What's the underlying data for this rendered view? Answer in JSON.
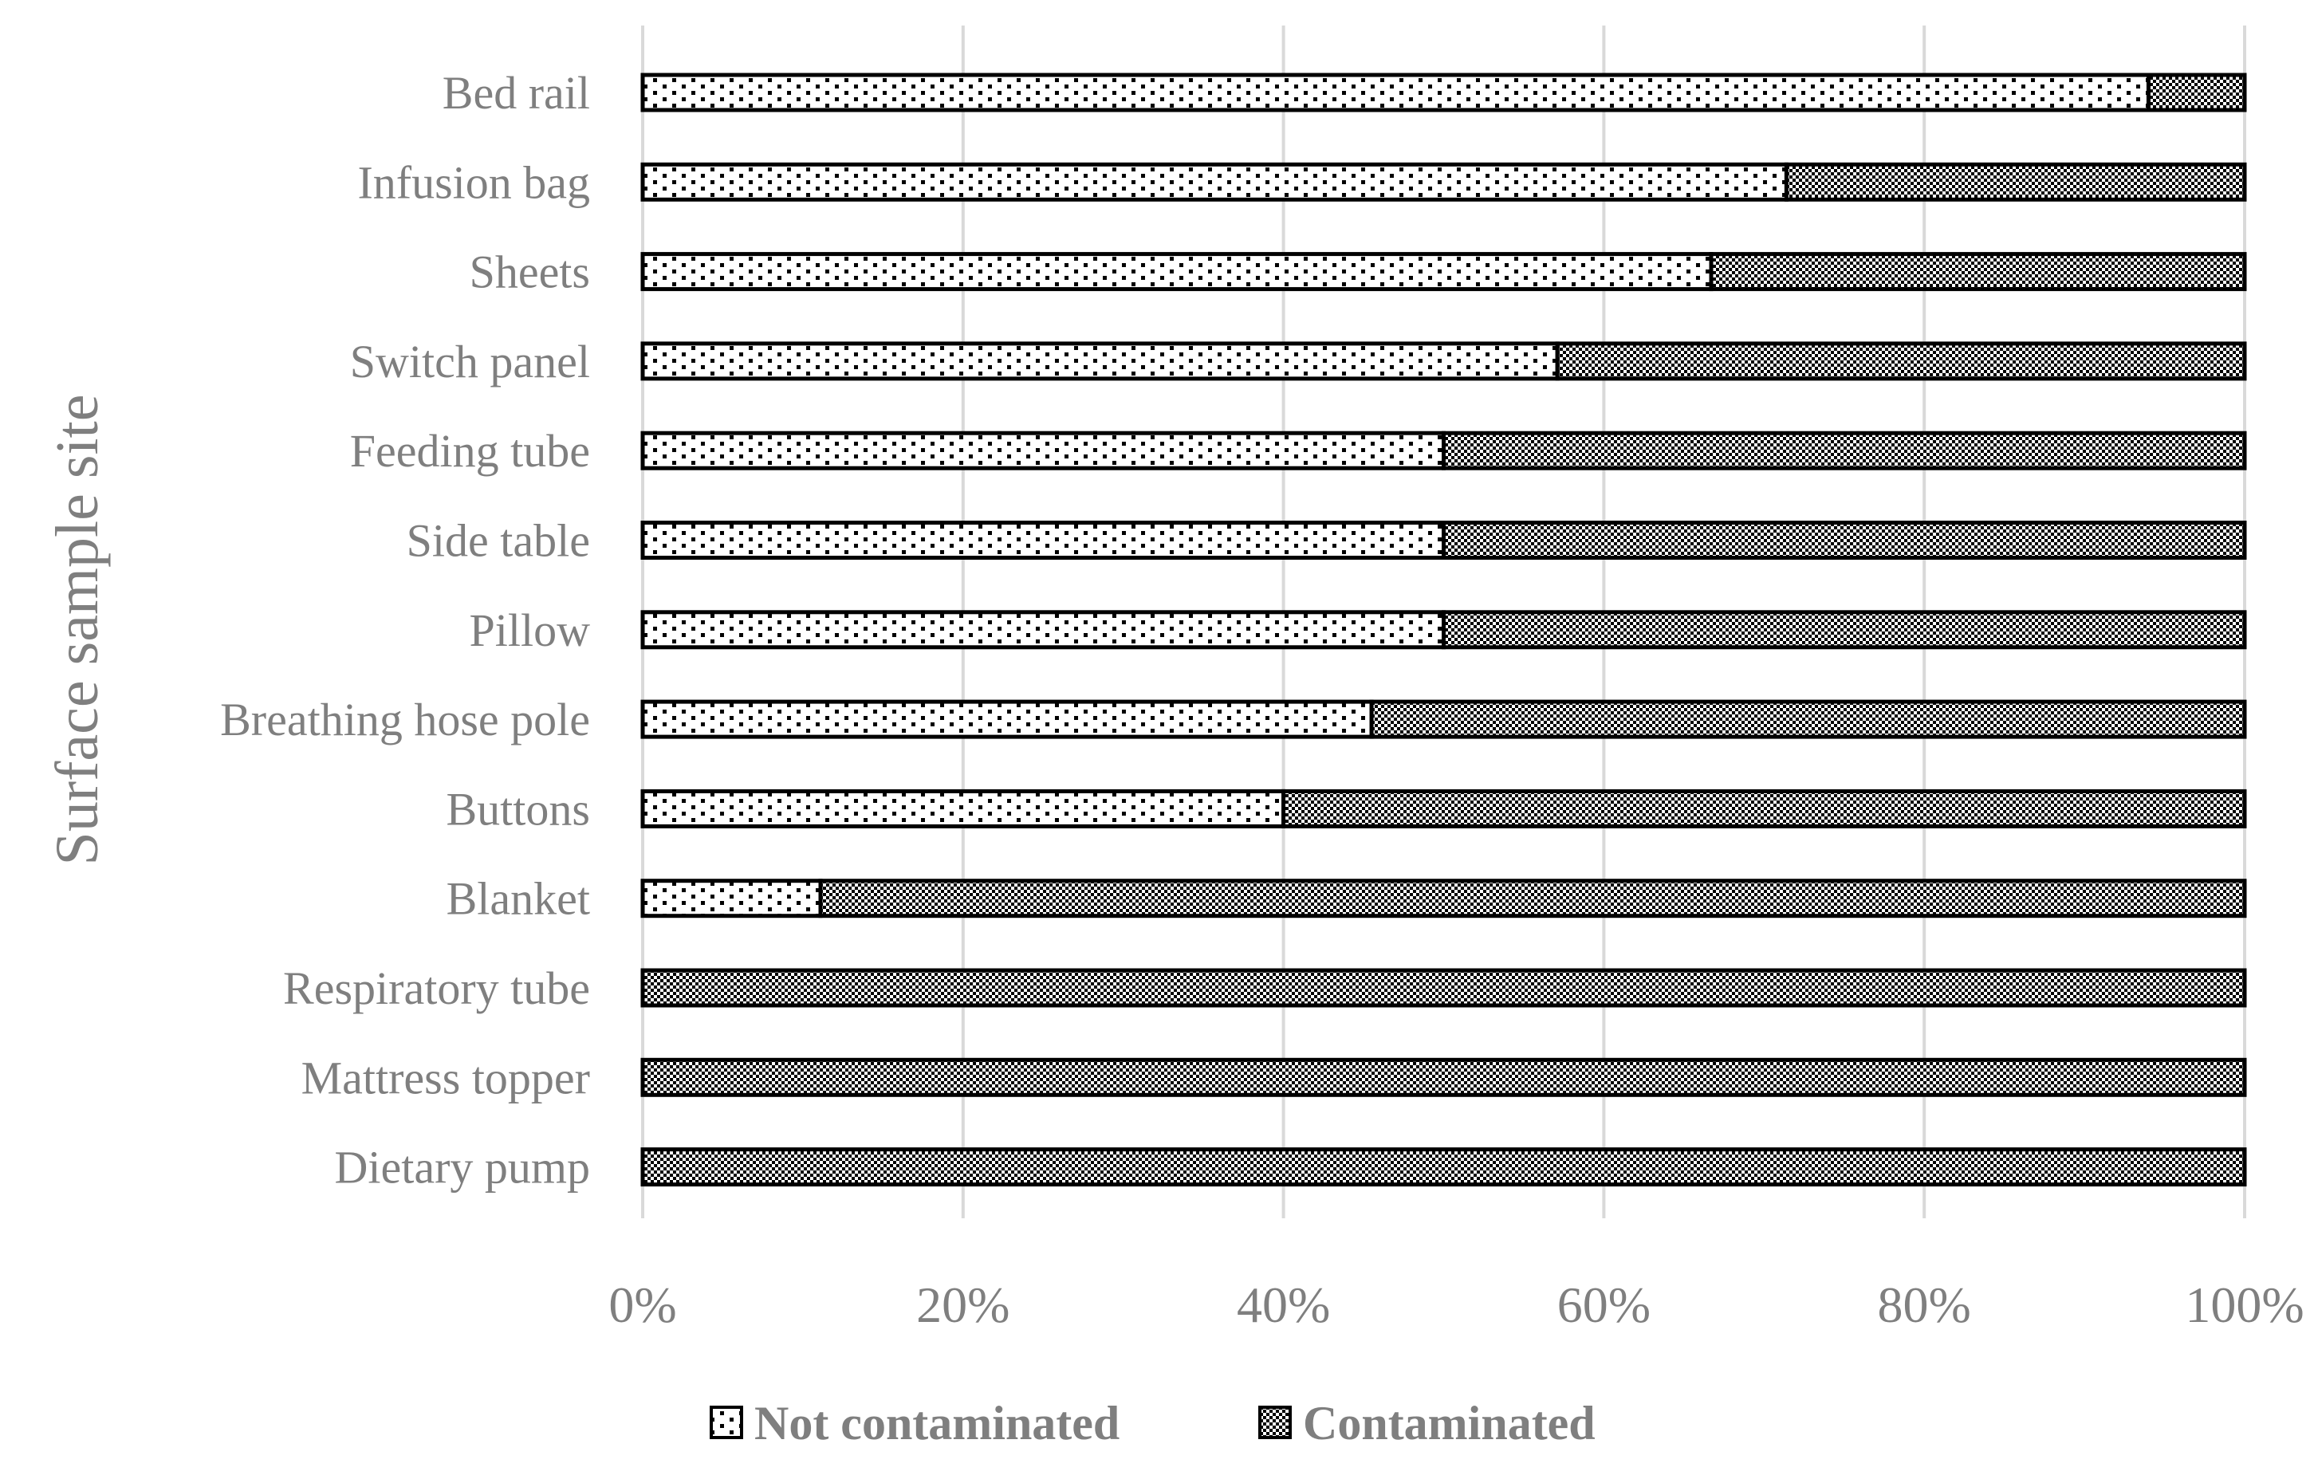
{
  "chart_data": {
    "type": "bar",
    "orientation": "horizontal",
    "stacked": "percent",
    "title": "",
    "xlabel": "",
    "ylabel": "Surface sample site",
    "xlim": [
      0,
      100
    ],
    "x_ticks": [
      "0%",
      "20%",
      "40%",
      "60%",
      "80%",
      "100%"
    ],
    "grid": "vertical",
    "legend_position": "bottom",
    "categories": [
      "Bed rail",
      "Infusion bag",
      "Sheets",
      "Switch panel",
      "Feeding tube",
      "Side table",
      "Pillow",
      "Breathing hose pole",
      "Buttons",
      "Blanket",
      "Respiratory tube",
      "Mattress topper",
      "Dietary pump"
    ],
    "series": [
      {
        "name": "Not contaminated",
        "pattern": "dots",
        "values": [
          94,
          71.4,
          66.7,
          57.1,
          50,
          50,
          50,
          45.5,
          40,
          11.1,
          0,
          0,
          0
        ]
      },
      {
        "name": "Contaminated",
        "pattern": "checker",
        "values": [
          6,
          28.6,
          33.3,
          42.9,
          50,
          50,
          50,
          54.5,
          60,
          88.9,
          100,
          100,
          100
        ]
      }
    ]
  }
}
